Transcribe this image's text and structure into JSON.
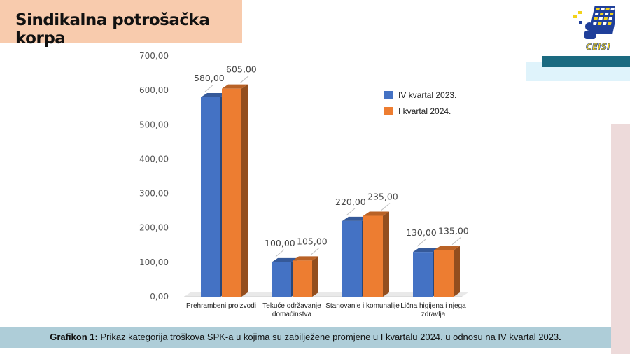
{
  "header": {
    "title": "Sindikalna potrošačka korpa"
  },
  "logo": {
    "text": "CEISI"
  },
  "caption": {
    "label": "Grafikon 1:",
    "text": " Prikaz kategorija troškova SPK-a u kojima su zabilježene promjene u I kvartalu 2024. u odnosu na IV kvartal 2023",
    "end": "."
  },
  "chart_data": {
    "type": "bar",
    "categories": [
      [
        "Prehrambeni proizvodi"
      ],
      [
        "Tekuće održavanje",
        "domaćinstva"
      ],
      [
        "Stanovanje i komunalije"
      ],
      [
        "Lična higijena i njega",
        "zdravlja"
      ]
    ],
    "series": [
      {
        "name": "IV kvartal 2023.",
        "values": [
          580,
          100,
          220,
          130
        ],
        "labels": [
          "580,00",
          "100,00",
          "220,00",
          "130,00"
        ],
        "color": "#4472c4"
      },
      {
        "name": "I kvartal 2024.",
        "values": [
          605,
          105,
          235,
          135
        ],
        "labels": [
          "605,00",
          "105,00",
          "235,00",
          "135,00"
        ],
        "color": "#ed7d31"
      }
    ],
    "yticks": [
      "0,00",
      "100,00",
      "200,00",
      "300,00",
      "400,00",
      "500,00",
      "600,00",
      "700,00"
    ],
    "ylim": [
      0,
      700
    ],
    "legend_position": "top-right",
    "grid": false
  }
}
